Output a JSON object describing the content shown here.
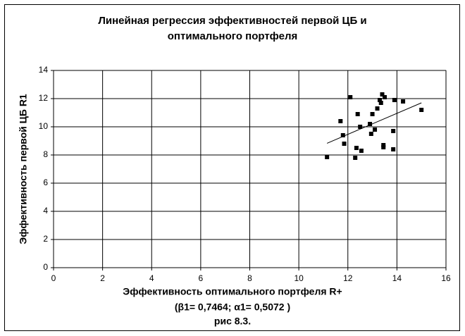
{
  "chart_data": {
    "type": "scatter",
    "title": [
      "Линейная регрессия эффективностей первой ЦБ и",
      "оптимального портфеля"
    ],
    "x_label": [
      "Эффективность оптимального портфеля R+",
      "(β1= 0,7464; α1= 0,5072 )",
      "рис 8.3."
    ],
    "y_label": "Эффективность первой ЦБ R1",
    "series": [
      {
        "color": "#000000",
        "x": [
          11.15,
          11.7,
          11.8,
          11.85,
          12.1,
          12.3,
          12.35,
          12.4,
          12.5,
          12.55,
          12.9,
          12.95,
          13.0,
          13.1,
          13.2,
          13.3,
          13.35,
          13.4,
          13.45,
          13.45,
          13.5,
          13.85,
          13.85,
          13.9,
          14.25,
          15.0
        ],
        "values": [
          7.85,
          10.4,
          9.4,
          8.8,
          12.1,
          7.8,
          8.5,
          10.9,
          10.0,
          8.3,
          10.2,
          9.5,
          10.9,
          9.8,
          11.3,
          11.9,
          11.7,
          12.3,
          8.7,
          8.55,
          12.1,
          9.7,
          8.4,
          11.9,
          11.8,
          11.2
        ]
      }
    ],
    "trendline": {
      "color": "#000000",
      "x": [
        11.15,
        15.0
      ],
      "values": [
        8.83,
        11.7
      ]
    },
    "xlim": [
      0,
      16
    ],
    "xticks": [
      0,
      2,
      4,
      6,
      8,
      10,
      12,
      14,
      16
    ],
    "ylim": [
      0,
      14
    ],
    "yticks": [
      0,
      2,
      4,
      6,
      8,
      10,
      12,
      14
    ],
    "grid": true
  }
}
